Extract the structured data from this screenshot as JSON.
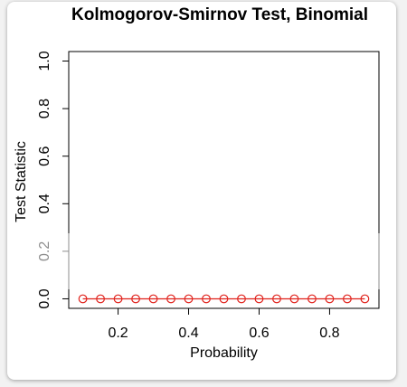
{
  "chart_data": {
    "type": "scatter",
    "title": "Kolmogorov-Smirnov Test, Binomial",
    "xlabel": "Probability",
    "ylabel": "Test Statistic",
    "xlim": [
      0.06,
      0.94
    ],
    "ylim": [
      -0.04,
      1.04
    ],
    "x_ticks": [
      "0.2",
      "0.4",
      "0.6",
      "0.8"
    ],
    "x_tick_values": [
      0.2,
      0.4,
      0.6,
      0.8
    ],
    "y_ticks": [
      "0.0",
      "0.2",
      "0.4",
      "0.6",
      "0.8",
      "1.0"
    ],
    "y_tick_values": [
      0.0,
      0.2,
      0.4,
      0.6,
      0.8,
      1.0
    ],
    "x": [
      0.1,
      0.15,
      0.2,
      0.25,
      0.3,
      0.35,
      0.4,
      0.45,
      0.5,
      0.55,
      0.6,
      0.65,
      0.7,
      0.75,
      0.8,
      0.85,
      0.9
    ],
    "y": [
      0,
      0,
      0,
      0,
      0,
      0,
      0,
      0,
      0,
      0,
      0,
      0,
      0,
      0,
      0,
      0,
      0
    ],
    "marker": "open-circle",
    "connected_line": true,
    "grid": false,
    "colors": {
      "series": "#e0221c",
      "axes": "#000000"
    }
  }
}
